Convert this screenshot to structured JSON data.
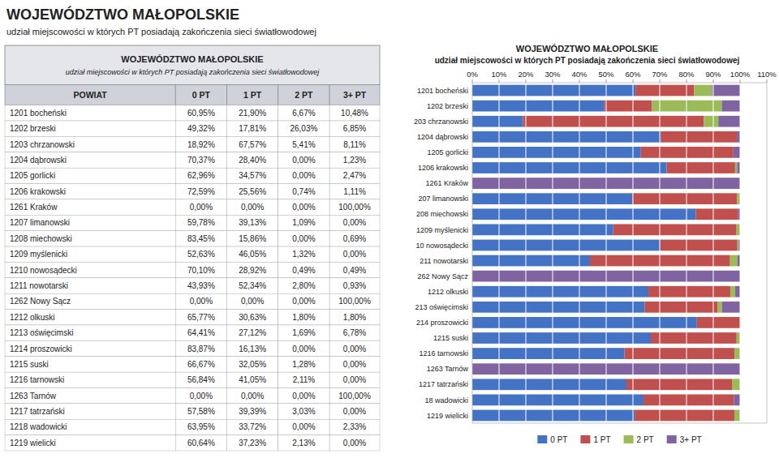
{
  "chart_data": [
    {
      "type": "table",
      "title": "WOJEWÓDZTWO MAŁOPOLSKIE",
      "subtitle": "udział miejscowości w których PT posiadają zakończenia sieci światłowodowej",
      "category_label": "POWIAT",
      "categories": [
        "1201 bocheński",
        "1202 brzeski",
        "1203 chrzanowski",
        "1204 dąbrowski",
        "1205 gorlicki",
        "1206 krakowski",
        "1261 Kraków",
        "1207 limanowski",
        "1208 miechowski",
        "1209 myślenicki",
        "1210 nowosądecki",
        "1211 nowotarski",
        "1262 Nowy Sącz",
        "1212 olkuski",
        "1213 oświęcimski",
        "1214 proszowicki",
        "1215 suski",
        "1216 tarnowski",
        "1263 Tarnów",
        "1217 tatrzański",
        "1218 wadowicki",
        "1219 wielicki"
      ],
      "series": [
        {
          "name": "0 PT",
          "values": [
            60.95,
            49.32,
            18.92,
            70.37,
            62.96,
            72.59,
            0.0,
            59.78,
            83.45,
            52.63,
            70.1,
            43.93,
            0.0,
            65.77,
            64.41,
            83.87,
            66.67,
            56.84,
            0.0,
            57.58,
            63.95,
            60.64
          ],
          "value_labels": [
            "60,95%",
            "49,32%",
            "18,92%",
            "70,37%",
            "62,96%",
            "72,59%",
            "0,00%",
            "59,78%",
            "83,45%",
            "52,63%",
            "70,10%",
            "43,93%",
            "0,00%",
            "65,77%",
            "64,41%",
            "83,87%",
            "66,67%",
            "56,84%",
            "0,00%",
            "57,58%",
            "63,95%",
            "60,64%"
          ]
        },
        {
          "name": "1 PT",
          "values": [
            21.9,
            17.81,
            67.57,
            28.4,
            34.57,
            25.56,
            0.0,
            39.13,
            15.86,
            46.05,
            28.92,
            52.34,
            0.0,
            30.63,
            27.12,
            16.13,
            32.05,
            41.05,
            0.0,
            39.39,
            33.72,
            37.23
          ],
          "value_labels": [
            "21,90%",
            "17,81%",
            "67,57%",
            "28,40%",
            "34,57%",
            "25,56%",
            "0,00%",
            "39,13%",
            "15,86%",
            "46,05%",
            "28,92%",
            "52,34%",
            "0,00%",
            "30,63%",
            "27,12%",
            "16,13%",
            "32,05%",
            "41,05%",
            "0,00%",
            "39,39%",
            "33,72%",
            "37,23%"
          ]
        },
        {
          "name": "2 PT",
          "values": [
            6.67,
            26.03,
            5.41,
            0.0,
            0.0,
            0.74,
            0.0,
            1.09,
            0.0,
            1.32,
            0.49,
            2.8,
            0.0,
            1.8,
            1.69,
            0.0,
            1.28,
            2.11,
            0.0,
            3.03,
            0.0,
            2.13
          ],
          "value_labels": [
            "6,67%",
            "26,03%",
            "5,41%",
            "0,00%",
            "0,00%",
            "0,74%",
            "0,00%",
            "1,09%",
            "0,00%",
            "1,32%",
            "0,49%",
            "2,80%",
            "0,00%",
            "1,80%",
            "1,69%",
            "0,00%",
            "1,28%",
            "2,11%",
            "0,00%",
            "3,03%",
            "0,00%",
            "2,13%"
          ]
        },
        {
          "name": "3+ PT",
          "values": [
            10.48,
            6.85,
            8.11,
            1.23,
            2.47,
            1.11,
            100.0,
            0.0,
            0.69,
            0.0,
            0.49,
            0.93,
            100.0,
            1.8,
            6.78,
            0.0,
            0.0,
            0.0,
            100.0,
            0.0,
            2.33,
            0.0
          ],
          "value_labels": [
            "10,48%",
            "6,85%",
            "8,11%",
            "1,23%",
            "2,47%",
            "1,11%",
            "100,00%",
            "0,00%",
            "0,69%",
            "0,00%",
            "0,49%",
            "0,93%",
            "100,00%",
            "1,80%",
            "6,78%",
            "0,00%",
            "0,00%",
            "0,00%",
            "100,00%",
            "0,00%",
            "2,33%",
            "0,00%"
          ]
        }
      ]
    },
    {
      "type": "bar",
      "orientation": "horizontal",
      "stacked": true,
      "title": "WOJEWÓDZTWO MAŁOPOLSKIE",
      "subtitle": "udział miejscowości w których PT posiadają zakończenia sieci światłowodowej",
      "categories": [
        "1201 bocheński",
        "1202 brzeski",
        "203 chrzanowski",
        "1204 dąbrowski",
        "1205 gorlicki",
        "1206 krakowski",
        "1261 Kraków",
        "207 limanowski",
        "208 miechowski",
        "1209 myślenicki",
        "10 nowosądecki",
        "211 nowotarski",
        "262 Nowy Sącz",
        "1212 olkuski",
        "213 oświęcimski",
        "214 proszowicki",
        "1215 suski",
        "1216 tarnowski",
        "1263 Tarnów",
        "1217 tatrzański",
        "18 wadowicki",
        "1219 wielicki"
      ],
      "series": [
        {
          "name": "0 PT",
          "color": "#4472C4",
          "values": [
            60.95,
            49.32,
            18.92,
            70.37,
            62.96,
            72.59,
            0.0,
            59.78,
            83.45,
            52.63,
            70.1,
            43.93,
            0.0,
            65.77,
            64.41,
            83.87,
            66.67,
            56.84,
            0.0,
            57.58,
            63.95,
            60.64
          ]
        },
        {
          "name": "1 PT",
          "color": "#C0504D",
          "values": [
            21.9,
            17.81,
            67.57,
            28.4,
            34.57,
            25.56,
            0.0,
            39.13,
            15.86,
            46.05,
            28.92,
            52.34,
            0.0,
            30.63,
            27.12,
            16.13,
            32.05,
            41.05,
            0.0,
            39.39,
            33.72,
            37.23
          ]
        },
        {
          "name": "2 PT",
          "color": "#9BBB59",
          "values": [
            6.67,
            26.03,
            5.41,
            0.0,
            0.0,
            0.74,
            0.0,
            1.09,
            0.0,
            1.32,
            0.49,
            2.8,
            0.0,
            1.8,
            1.69,
            0.0,
            1.28,
            2.11,
            0.0,
            3.03,
            0.0,
            2.13
          ]
        },
        {
          "name": "3+ PT",
          "color": "#8064A2",
          "values": [
            10.48,
            6.85,
            8.11,
            1.23,
            2.47,
            1.11,
            100.0,
            0.0,
            0.69,
            0.0,
            0.49,
            0.93,
            100.0,
            1.8,
            6.78,
            0.0,
            0.0,
            0.0,
            100.0,
            0.0,
            2.33,
            0.0
          ]
        }
      ],
      "xlim": [
        0,
        110
      ],
      "xticks": [
        {
          "value": 0,
          "label": "0%"
        },
        {
          "value": 10,
          "label": "10%"
        },
        {
          "value": 20,
          "label": "20%"
        },
        {
          "value": 30,
          "label": "30%"
        },
        {
          "value": 40,
          "label": "40%"
        },
        {
          "value": 50,
          "label": "50%"
        },
        {
          "value": 60,
          "label": "60%"
        },
        {
          "value": 70,
          "label": "70%"
        },
        {
          "value": 80,
          "label": "80%"
        },
        {
          "value": 90,
          "label": "90%"
        },
        {
          "value": 100,
          "label": "100%"
        },
        {
          "value": 110,
          "label": "110%"
        }
      ],
      "grid": true,
      "legend": "bottom"
    }
  ]
}
